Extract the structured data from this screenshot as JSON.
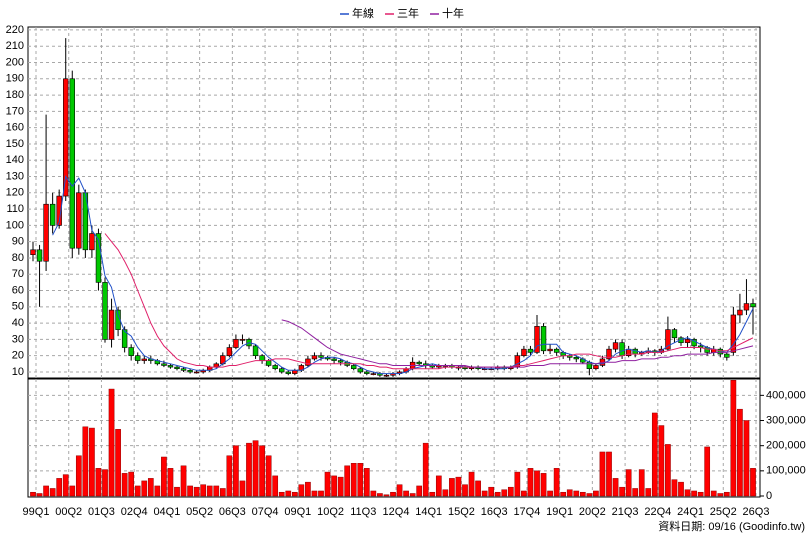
{
  "chart_data": {
    "type": "candlestick",
    "source": "資料日期: 09/16 (Goodinfo.tw)",
    "categories": [
      "99Q1",
      null,
      null,
      null,
      null,
      "00Q2",
      null,
      null,
      null,
      null,
      "01Q3",
      null,
      null,
      null,
      null,
      "02Q4",
      null,
      null,
      null,
      null,
      "04Q1",
      null,
      null,
      null,
      null,
      "05Q2",
      null,
      null,
      null,
      null,
      "06Q3",
      null,
      null,
      null,
      null,
      "07Q4",
      null,
      null,
      null,
      null,
      "09Q1",
      null,
      null,
      null,
      null,
      "10Q2",
      null,
      null,
      null,
      null,
      "11Q3",
      null,
      null,
      null,
      null,
      "12Q4",
      null,
      null,
      null,
      null,
      "14Q1",
      null,
      null,
      null,
      null,
      "15Q2",
      null,
      null,
      null,
      null,
      "16Q3",
      null,
      null,
      null,
      null,
      "17Q4",
      null,
      null,
      null,
      null,
      "19Q1",
      null,
      null,
      null,
      null,
      "20Q2",
      null,
      null,
      null,
      null,
      "21Q3",
      null,
      null,
      null,
      null,
      "22Q4",
      null,
      null,
      null,
      null,
      "24Q1",
      null,
      null,
      null,
      null,
      "25Q2",
      null,
      null,
      null,
      null,
      "26Q3"
    ],
    "up_color": "#ff0000",
    "down_color": "#00c800",
    "grid": true,
    "legend": "top",
    "ylim": [
      6.3,
      221.8
    ],
    "yticks": [
      10,
      20,
      30,
      40,
      50,
      60,
      70,
      80,
      90,
      100,
      110,
      120,
      130,
      140,
      150,
      160,
      170,
      180,
      190,
      200,
      210,
      220
    ],
    "candles": {
      "open": [
        82,
        85,
        78,
        113,
        100,
        118,
        190,
        86,
        120,
        85,
        95,
        65,
        30,
        48,
        36,
        25,
        20,
        17,
        18,
        17,
        15,
        14,
        13,
        12,
        11,
        10,
        10,
        11,
        13,
        15,
        20,
        25,
        30,
        30,
        26,
        20,
        17,
        14,
        12,
        10,
        9,
        11,
        14,
        18,
        20,
        19,
        18,
        17,
        16,
        14,
        12,
        10,
        9,
        9,
        8,
        8,
        9,
        10,
        12,
        16,
        15,
        14,
        13,
        14,
        14,
        13,
        13,
        12,
        13,
        12,
        12,
        12,
        13,
        12,
        13,
        20,
        24,
        22,
        38,
        23,
        24,
        22,
        20,
        19,
        18,
        16,
        12,
        14,
        18,
        24,
        28,
        20,
        24,
        21,
        22,
        23,
        22,
        24,
        36,
        31,
        28,
        30,
        26,
        25,
        22,
        24,
        21,
        22,
        45,
        48,
        52
      ],
      "high": [
        90,
        88,
        168,
        120,
        122,
        215,
        195,
        125,
        122,
        100,
        98,
        68,
        55,
        50,
        38,
        27,
        22,
        20,
        20,
        18,
        17,
        15,
        14,
        13,
        12,
        11,
        12,
        14,
        16,
        22,
        27,
        33,
        33,
        31,
        27,
        21,
        18,
        15,
        13,
        11,
        12,
        15,
        20,
        22,
        22,
        20,
        19,
        18,
        17,
        15,
        13,
        11,
        10,
        10,
        9,
        10,
        11,
        13,
        19,
        17,
        17,
        15,
        15,
        15,
        15,
        14,
        14,
        14,
        14,
        13,
        13,
        14,
        14,
        14,
        22,
        26,
        26,
        45,
        40,
        27,
        25,
        23,
        21,
        20,
        19,
        17,
        15,
        20,
        26,
        30,
        30,
        26,
        25,
        23,
        25,
        24,
        26,
        44,
        37,
        32,
        32,
        31,
        28,
        26,
        26,
        25,
        22,
        50,
        58,
        67,
        55
      ],
      "low": [
        78,
        50,
        72,
        95,
        98,
        115,
        80,
        82,
        80,
        80,
        60,
        28,
        25,
        32,
        22,
        17,
        15,
        15,
        15,
        14,
        13,
        12,
        11,
        10,
        9,
        9,
        9,
        10,
        12,
        14,
        19,
        24,
        27,
        24,
        18,
        15,
        13,
        11,
        9,
        8,
        8,
        10,
        13,
        17,
        17,
        17,
        15,
        14,
        13,
        11,
        9,
        8,
        8,
        7,
        7,
        7,
        8,
        9,
        11,
        14,
        12,
        12,
        12,
        12,
        12,
        11,
        11,
        11,
        11,
        11,
        11,
        11,
        11,
        11,
        12,
        19,
        20,
        21,
        21,
        21,
        20,
        18,
        17,
        16,
        15,
        8,
        11,
        13,
        17,
        22,
        18,
        19,
        19,
        20,
        21,
        20,
        21,
        23,
        28,
        26,
        25,
        24,
        22,
        20,
        20,
        19,
        17,
        20,
        40,
        45,
        33
      ],
      "close": [
        85,
        78,
        113,
        100,
        118,
        190,
        86,
        120,
        85,
        95,
        65,
        30,
        48,
        36,
        25,
        20,
        17,
        18,
        17,
        15,
        14,
        13,
        12,
        11,
        10,
        10,
        11,
        13,
        15,
        20,
        25,
        30,
        30,
        26,
        20,
        17,
        14,
        12,
        10,
        9,
        11,
        14,
        18,
        20,
        19,
        18,
        17,
        16,
        14,
        12,
        10,
        9,
        9,
        8,
        8,
        9,
        10,
        12,
        16,
        15,
        14,
        13,
        14,
        14,
        13,
        13,
        12,
        13,
        12,
        12,
        12,
        13,
        12,
        13,
        20,
        24,
        22,
        38,
        23,
        24,
        22,
        20,
        19,
        18,
        16,
        12,
        14,
        18,
        24,
        28,
        20,
        24,
        21,
        22,
        23,
        22,
        24,
        36,
        31,
        28,
        30,
        26,
        25,
        22,
        24,
        21,
        19,
        45,
        48,
        52,
        50
      ]
    },
    "series": [
      {
        "name": "年線",
        "color": "#2050c8",
        "values": [
          null,
          null,
          null,
          94,
          102,
          130,
          124,
          129,
          120,
          97,
          91,
          69,
          62,
          45,
          35,
          32,
          25,
          20,
          18,
          17,
          16,
          15,
          14,
          13,
          12,
          11,
          11,
          11,
          12,
          15,
          18,
          22,
          26,
          28,
          27,
          23,
          19,
          16,
          13,
          11,
          11,
          11,
          13,
          16,
          18,
          19,
          19,
          18,
          16,
          15,
          13,
          11,
          10,
          9,
          9,
          9,
          9,
          10,
          12,
          13,
          14,
          15,
          14,
          14,
          14,
          14,
          13,
          13,
          13,
          12,
          12,
          12,
          12,
          13,
          15,
          17,
          20,
          26,
          27,
          27,
          27,
          22,
          21,
          20,
          18,
          16,
          15,
          15,
          17,
          21,
          23,
          24,
          23,
          22,
          23,
          22,
          23,
          26,
          28,
          30,
          31,
          29,
          27,
          25,
          24,
          23,
          22,
          27,
          33,
          41,
          49
        ]
      },
      {
        "name": "三年",
        "color": "#e0206a",
        "values": [
          null,
          null,
          null,
          null,
          null,
          null,
          null,
          null,
          null,
          null,
          null,
          95,
          90,
          85,
          78,
          70,
          60,
          50,
          40,
          32,
          26,
          22,
          18,
          16,
          15,
          14,
          14,
          13,
          13,
          13,
          14,
          14,
          15,
          16,
          17,
          17,
          17,
          18,
          18,
          18,
          17,
          16,
          15,
          15,
          15,
          15,
          15,
          15,
          15,
          15,
          15,
          14,
          14,
          13,
          13,
          12,
          12,
          12,
          12,
          12,
          12,
          12,
          12,
          13,
          13,
          13,
          13,
          13,
          13,
          13,
          13,
          13,
          13,
          13,
          14,
          14,
          15,
          16,
          17,
          18,
          19,
          20,
          20,
          21,
          21,
          21,
          20,
          19,
          19,
          19,
          20,
          21,
          21,
          21,
          22,
          22,
          22,
          23,
          24,
          25,
          25,
          25,
          25,
          24,
          24,
          23,
          23,
          25,
          27,
          29,
          31
        ]
      },
      {
        "name": "十年",
        "color": "#9020a0",
        "values": [
          null,
          null,
          null,
          null,
          null,
          null,
          null,
          null,
          null,
          null,
          null,
          null,
          null,
          null,
          null,
          null,
          null,
          null,
          null,
          null,
          null,
          null,
          null,
          null,
          null,
          null,
          null,
          null,
          null,
          null,
          null,
          null,
          null,
          null,
          null,
          null,
          null,
          null,
          42,
          41,
          39,
          37,
          34,
          31,
          28,
          25,
          23,
          21,
          20,
          19,
          18,
          17,
          16,
          15,
          15,
          14,
          14,
          14,
          14,
          14,
          14,
          14,
          14,
          14,
          14,
          14,
          14,
          13,
          13,
          13,
          13,
          13,
          13,
          13,
          13,
          13,
          14,
          14,
          14,
          15,
          15,
          15,
          15,
          15,
          15,
          15,
          15,
          16,
          16,
          16,
          17,
          17,
          17,
          18,
          18,
          18,
          19,
          19,
          20,
          20,
          21,
          21,
          21,
          21,
          22,
          22,
          22,
          23,
          24,
          25,
          26
        ]
      }
    ],
    "volume": {
      "color": "#ff0000",
      "ylim": [
        0,
        465000
      ],
      "yticks": [
        0,
        {
          "value": 100000,
          "label": "100,000"
        },
        {
          "value": 200000,
          "label": "200,000"
        },
        {
          "value": 300000,
          "label": "300,000"
        },
        {
          "value": 400000,
          "label": "400,000"
        }
      ],
      "values": [
        15000,
        10000,
        40000,
        30000,
        70000,
        85000,
        40000,
        160000,
        275000,
        270000,
        110000,
        105000,
        425000,
        265000,
        90000,
        95000,
        40000,
        60000,
        70000,
        40000,
        155000,
        110000,
        35000,
        120000,
        40000,
        35000,
        45000,
        40000,
        40000,
        30000,
        160000,
        200000,
        60000,
        210000,
        220000,
        200000,
        160000,
        80000,
        15000,
        20000,
        15000,
        45000,
        55000,
        20000,
        20000,
        95000,
        80000,
        75000,
        120000,
        130000,
        130000,
        110000,
        20000,
        10000,
        5000,
        15000,
        45000,
        20000,
        10000,
        40000,
        210000,
        15000,
        80000,
        25000,
        70000,
        75000,
        45000,
        95000,
        60000,
        20000,
        35000,
        15000,
        25000,
        35000,
        95000,
        20000,
        110000,
        100000,
        90000,
        20000,
        110000,
        15000,
        25000,
        20000,
        15000,
        10000,
        20000,
        175000,
        175000,
        70000,
        35000,
        105000,
        30000,
        105000,
        30000,
        330000,
        280000,
        205000,
        65000,
        55000,
        25000,
        20000,
        15000,
        195000,
        20000,
        10000,
        15000,
        460000,
        345000,
        300000,
        110000
      ]
    }
  }
}
